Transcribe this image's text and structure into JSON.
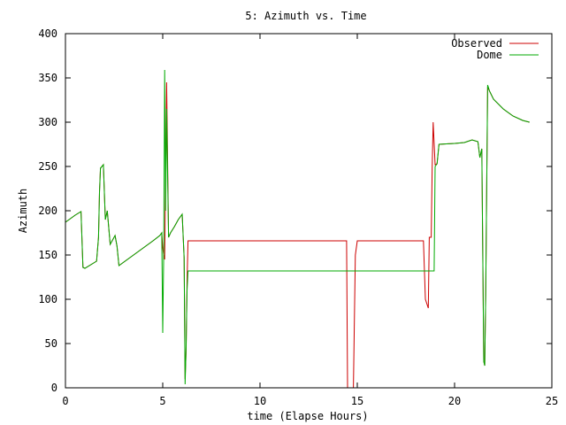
{
  "chart_data": {
    "type": "line",
    "title": "5: Azimuth vs. Time",
    "xlabel": "time (Elapse Hours)",
    "ylabel": "Azimuth",
    "xlim": [
      0,
      25
    ],
    "ylim": [
      0,
      400
    ],
    "xticks": [
      0,
      5,
      10,
      15,
      20,
      25
    ],
    "yticks": [
      0,
      50,
      100,
      150,
      200,
      250,
      300,
      350,
      400
    ],
    "grid": false,
    "legend_position": "top-right",
    "series": [
      {
        "name": "Observed",
        "color": "#cc0000",
        "points": [
          [
            0.0,
            187
          ],
          [
            0.5,
            195
          ],
          [
            0.8,
            199
          ],
          [
            0.9,
            136
          ],
          [
            1.0,
            135
          ],
          [
            1.6,
            143
          ],
          [
            1.7,
            170
          ],
          [
            1.75,
            222
          ],
          [
            1.8,
            248
          ],
          [
            1.95,
            252
          ],
          [
            2.05,
            190
          ],
          [
            2.15,
            200
          ],
          [
            2.3,
            162
          ],
          [
            2.55,
            172
          ],
          [
            2.65,
            160
          ],
          [
            2.75,
            138
          ],
          [
            3.0,
            142
          ],
          [
            3.5,
            150
          ],
          [
            4.0,
            158
          ],
          [
            4.5,
            166
          ],
          [
            4.85,
            172
          ],
          [
            4.95,
            175
          ],
          [
            5.0,
            158
          ],
          [
            5.05,
            150
          ],
          [
            5.1,
            145
          ],
          [
            5.2,
            345
          ],
          [
            5.3,
            170
          ],
          [
            5.4,
            175
          ],
          [
            5.6,
            182
          ],
          [
            5.8,
            190
          ],
          [
            6.0,
            196
          ],
          [
            6.1,
            147
          ],
          [
            6.15,
            10
          ],
          [
            6.2,
            40
          ],
          [
            6.25,
            120
          ],
          [
            6.3,
            166
          ],
          [
            9.0,
            166
          ],
          [
            12.0,
            166
          ],
          [
            14.0,
            166
          ],
          [
            14.45,
            166
          ],
          [
            14.5,
            0
          ],
          [
            14.8,
            0
          ],
          [
            14.9,
            150
          ],
          [
            15.0,
            166
          ],
          [
            18.0,
            166
          ],
          [
            18.4,
            166
          ],
          [
            18.5,
            100
          ],
          [
            18.65,
            90
          ],
          [
            18.7,
            170
          ],
          [
            18.8,
            170
          ],
          [
            18.85,
            250
          ],
          [
            18.9,
            300
          ],
          [
            19.0,
            252
          ],
          [
            19.1,
            253
          ],
          [
            19.2,
            275
          ],
          [
            20.0,
            276
          ],
          [
            20.5,
            277
          ],
          [
            20.9,
            280
          ],
          [
            21.2,
            278
          ],
          [
            21.3,
            260
          ],
          [
            21.4,
            270
          ],
          [
            21.5,
            30
          ],
          [
            21.55,
            25
          ],
          [
            21.6,
            105
          ],
          [
            21.7,
            340
          ],
          [
            21.8,
            335
          ],
          [
            22.0,
            326
          ],
          [
            22.5,
            315
          ],
          [
            23.0,
            307
          ],
          [
            23.5,
            302
          ],
          [
            23.85,
            300
          ]
        ]
      },
      {
        "name": "Dome",
        "color": "#00aa00",
        "points": [
          [
            0.0,
            187
          ],
          [
            0.5,
            195
          ],
          [
            0.8,
            199
          ],
          [
            0.9,
            136
          ],
          [
            1.0,
            135
          ],
          [
            1.6,
            143
          ],
          [
            1.7,
            170
          ],
          [
            1.75,
            220
          ],
          [
            1.8,
            248
          ],
          [
            1.95,
            252
          ],
          [
            2.05,
            190
          ],
          [
            2.15,
            200
          ],
          [
            2.3,
            162
          ],
          [
            2.55,
            172
          ],
          [
            2.65,
            160
          ],
          [
            2.75,
            138
          ],
          [
            3.0,
            142
          ],
          [
            3.5,
            150
          ],
          [
            4.0,
            158
          ],
          [
            4.5,
            166
          ],
          [
            4.85,
            172
          ],
          [
            4.95,
            175
          ],
          [
            5.0,
            62
          ],
          [
            5.05,
            150
          ],
          [
            5.1,
            359
          ],
          [
            5.15,
            200
          ],
          [
            5.2,
            315
          ],
          [
            5.3,
            170
          ],
          [
            5.4,
            175
          ],
          [
            5.6,
            182
          ],
          [
            5.8,
            190
          ],
          [
            6.0,
            196
          ],
          [
            6.1,
            147
          ],
          [
            6.15,
            4
          ],
          [
            6.2,
            45
          ],
          [
            6.25,
            110
          ],
          [
            6.3,
            132
          ],
          [
            9.0,
            132
          ],
          [
            12.0,
            132
          ],
          [
            15.0,
            132
          ],
          [
            18.0,
            132
          ],
          [
            18.95,
            132
          ],
          [
            19.0,
            250
          ],
          [
            19.1,
            253
          ],
          [
            19.2,
            275
          ],
          [
            20.0,
            276
          ],
          [
            20.5,
            277
          ],
          [
            20.9,
            280
          ],
          [
            21.2,
            278
          ],
          [
            21.3,
            260
          ],
          [
            21.4,
            270
          ],
          [
            21.5,
            30
          ],
          [
            21.55,
            25
          ],
          [
            21.6,
            105
          ],
          [
            21.7,
            342
          ],
          [
            21.8,
            335
          ],
          [
            22.0,
            326
          ],
          [
            22.5,
            315
          ],
          [
            23.0,
            307
          ],
          [
            23.5,
            302
          ],
          [
            23.85,
            300
          ]
        ]
      }
    ]
  }
}
